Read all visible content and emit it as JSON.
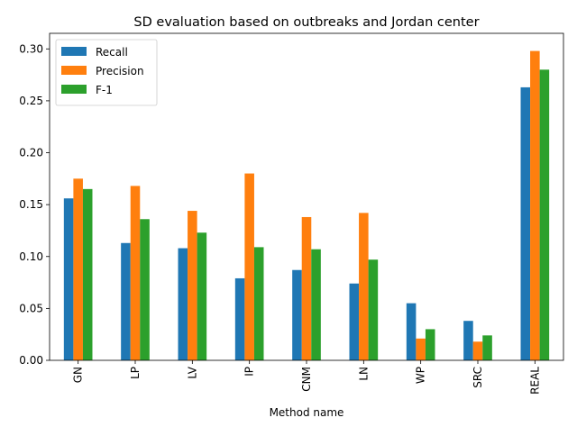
{
  "chart_data": {
    "type": "bar",
    "title": "SD evaluation based on outbreaks and Jordan center",
    "xlabel": "Method name",
    "ylabel": "",
    "categories": [
      "GN",
      "LP",
      "LV",
      "IP",
      "CNM",
      "LN",
      "WP",
      "SRC",
      "REAL"
    ],
    "ylim": [
      0,
      0.315
    ],
    "yticks": [
      "0.00",
      "0.05",
      "0.10",
      "0.15",
      "0.20",
      "0.25",
      "0.30"
    ],
    "legend_position": "top-left",
    "grid": false,
    "series": [
      {
        "name": "Recall",
        "color": "#1f77b4",
        "values": [
          0.156,
          0.113,
          0.108,
          0.079,
          0.087,
          0.074,
          0.055,
          0.038,
          0.263
        ]
      },
      {
        "name": "Precision",
        "color": "#ff7f0e",
        "values": [
          0.175,
          0.168,
          0.144,
          0.18,
          0.138,
          0.142,
          0.021,
          0.018,
          0.298
        ]
      },
      {
        "name": "F-1",
        "color": "#2ca02c",
        "values": [
          0.165,
          0.136,
          0.123,
          0.109,
          0.107,
          0.097,
          0.03,
          0.024,
          0.28
        ]
      }
    ]
  }
}
